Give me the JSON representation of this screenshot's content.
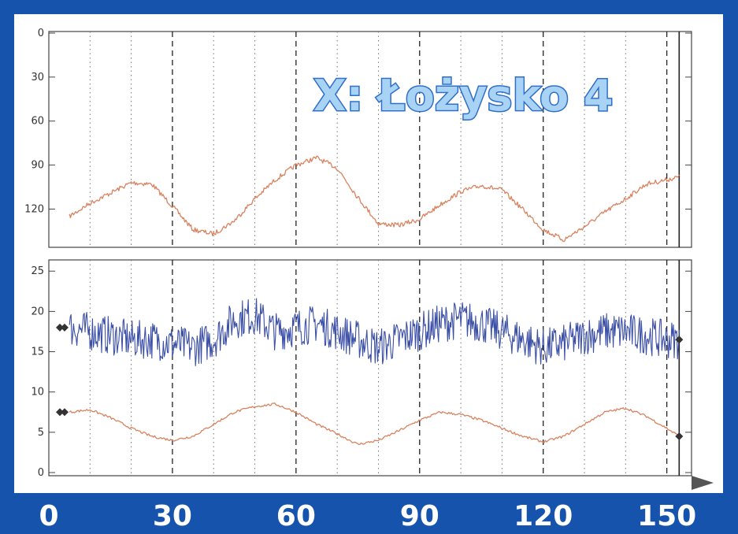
{
  "chart_data": [
    {
      "type": "line",
      "title": "X: Łożysko 4",
      "y_ticks": [
        "0",
        "30",
        "60",
        "90",
        "120"
      ],
      "ylim": [
        0,
        145
      ],
      "y_inverted": true,
      "xlim": [
        0,
        156
      ],
      "series": [
        {
          "color": "#d9825f",
          "x": [
            5,
            10,
            15,
            20,
            25,
            30,
            35,
            40,
            45,
            50,
            55,
            60,
            65,
            70,
            75,
            80,
            85,
            90,
            95,
            100,
            105,
            110,
            115,
            120,
            125,
            130,
            135,
            140,
            145,
            150,
            153
          ],
          "y": [
            125,
            116,
            109,
            102,
            103,
            118,
            134,
            137,
            128,
            113,
            100,
            90,
            85,
            92,
            112,
            130,
            131,
            127,
            117,
            108,
            104,
            107,
            120,
            134,
            141,
            132,
            122,
            113,
            103,
            100,
            98
          ]
        }
      ]
    },
    {
      "type": "line",
      "y_ticks": [
        "0",
        "5",
        "10",
        "15",
        "20",
        "25"
      ],
      "ylim": [
        0,
        26
      ],
      "x_ticks": [
        "0",
        "30",
        "60",
        "90",
        "120",
        "150"
      ],
      "xlim": [
        0,
        156
      ],
      "series": [
        {
          "color": "#3b4fa6",
          "x": [
            5,
            10,
            15,
            20,
            25,
            30,
            35,
            40,
            45,
            50,
            55,
            60,
            65,
            70,
            75,
            80,
            85,
            90,
            95,
            100,
            105,
            110,
            115,
            120,
            125,
            130,
            135,
            140,
            145,
            150,
            153
          ],
          "y": [
            18,
            17.5,
            17,
            16.5,
            16.5,
            16,
            15.5,
            16.5,
            19,
            19.5,
            17.5,
            18,
            18.5,
            17.5,
            16.5,
            15.5,
            16.5,
            17.5,
            18.5,
            19,
            18.5,
            17.5,
            16.5,
            15.5,
            16,
            17,
            17.5,
            17.5,
            17,
            16.5,
            16.5
          ],
          "noise": 2.4
        },
        {
          "color": "#d9825f",
          "x": [
            5,
            10,
            15,
            20,
            25,
            30,
            35,
            40,
            45,
            50,
            55,
            60,
            65,
            70,
            75,
            80,
            85,
            90,
            95,
            100,
            105,
            110,
            115,
            120,
            125,
            130,
            135,
            140,
            145,
            150,
            153
          ],
          "y": [
            7.5,
            7.8,
            6.8,
            5.5,
            4.5,
            4,
            4.5,
            6,
            7.5,
            8.2,
            8.5,
            7.5,
            6,
            4.8,
            3.5,
            4,
            5.2,
            6.5,
            7.5,
            7.2,
            6.5,
            5.5,
            4.5,
            3.8,
            4.5,
            6,
            7.5,
            8,
            7,
            5.5,
            4.5
          ]
        }
      ]
    }
  ]
}
